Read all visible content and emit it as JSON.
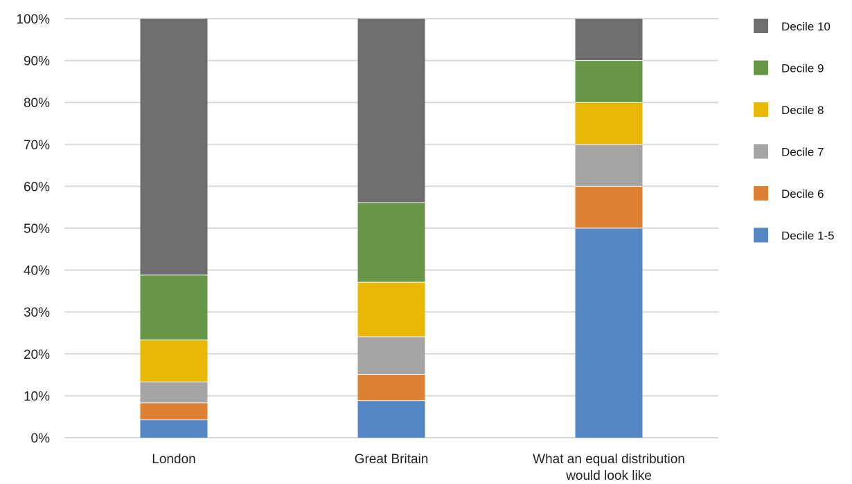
{
  "chart_data": {
    "type": "bar",
    "stacked": true,
    "categories": [
      "London",
      "Great Britain",
      "What an equal distribution would look like"
    ],
    "category_lines": [
      [
        "London"
      ],
      [
        "Great Britain"
      ],
      [
        "What an equal distribution",
        "would look like"
      ]
    ],
    "series": [
      {
        "name": "Decile 1-5",
        "color": "#5586C5",
        "values": [
          4.3,
          8.8,
          50
        ]
      },
      {
        "name": "Decile 6",
        "color": "#DD8235",
        "values": [
          4.0,
          6.3,
          10
        ]
      },
      {
        "name": "Decile 7",
        "color": "#A5A5A5",
        "values": [
          5.0,
          9.0,
          10
        ]
      },
      {
        "name": "Decile 8",
        "color": "#E8B804",
        "values": [
          10.0,
          13.0,
          10
        ]
      },
      {
        "name": "Decile 9",
        "color": "#679646",
        "values": [
          15.5,
          19.0,
          10
        ]
      },
      {
        "name": "Decile 10",
        "color": "#6E6E6E",
        "values": [
          61.2,
          43.9,
          10
        ]
      }
    ],
    "ylim": [
      0,
      100
    ],
    "yticks": [
      "0%",
      "10%",
      "20%",
      "30%",
      "40%",
      "50%",
      "60%",
      "70%",
      "80%",
      "90%",
      "100%"
    ],
    "grid": true,
    "legend_position": "right",
    "legend_order": [
      "Decile 10",
      "Decile 9",
      "Decile 8",
      "Decile 7",
      "Decile 6",
      "Decile 1-5"
    ]
  }
}
